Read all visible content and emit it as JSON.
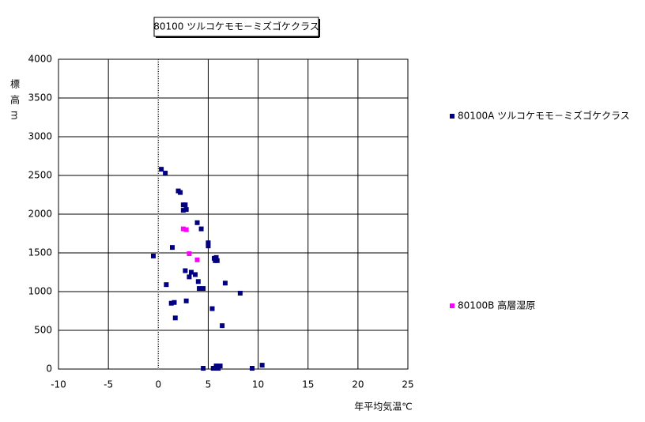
{
  "chart_data": {
    "type": "scatter",
    "title": "80100 ツルコケモモ－ミズゴケクラス",
    "x_label": "年平均気温℃",
    "y_label": "標高m",
    "xlim": [
      -10,
      25
    ],
    "xticks": [
      -10,
      -5,
      0,
      5,
      10,
      15,
      20,
      25
    ],
    "ylim": [
      0,
      4000
    ],
    "yticks": [
      0,
      500,
      1000,
      1500,
      2000,
      2500,
      3000,
      3500,
      4000
    ],
    "grid": true,
    "legend": "right",
    "series": [
      {
        "name": "80100A ツルコケモモ－ミズゴケクラス",
        "color": "#000080",
        "x": [
          0.3,
          0.7,
          2.0,
          2.2,
          2.5,
          2.7,
          2.5,
          2.8,
          3.9,
          4.3,
          5.0,
          5.0,
          -0.5,
          1.4,
          5.6,
          5.8,
          5.9,
          5.7,
          2.7,
          3.3,
          3.7,
          3.1,
          4.0,
          6.7,
          0.8,
          4.5,
          4.1,
          8.2,
          1.6,
          1.3,
          2.8,
          1.7,
          5.4,
          6.4,
          4.5,
          5.5,
          5.8,
          5.9,
          6.2,
          9.4,
          10.4,
          5.7,
          6.0
        ],
        "values": [
          2580,
          2530,
          2300,
          2280,
          2120,
          2120,
          2050,
          2060,
          1890,
          1810,
          1630,
          1590,
          1460,
          1570,
          1430,
          1440,
          1400,
          1400,
          1270,
          1250,
          1220,
          1190,
          1130,
          1110,
          1090,
          1040,
          1040,
          980,
          860,
          850,
          880,
          660,
          780,
          560,
          10,
          10,
          40,
          40,
          40,
          10,
          50,
          10,
          10
        ]
      },
      {
        "name": "80100B 高層湿原",
        "color": "#ff00ff",
        "x": [
          2.5,
          2.8,
          3.1,
          3.9
        ],
        "values": [
          1810,
          1800,
          1490,
          1410
        ]
      }
    ]
  }
}
